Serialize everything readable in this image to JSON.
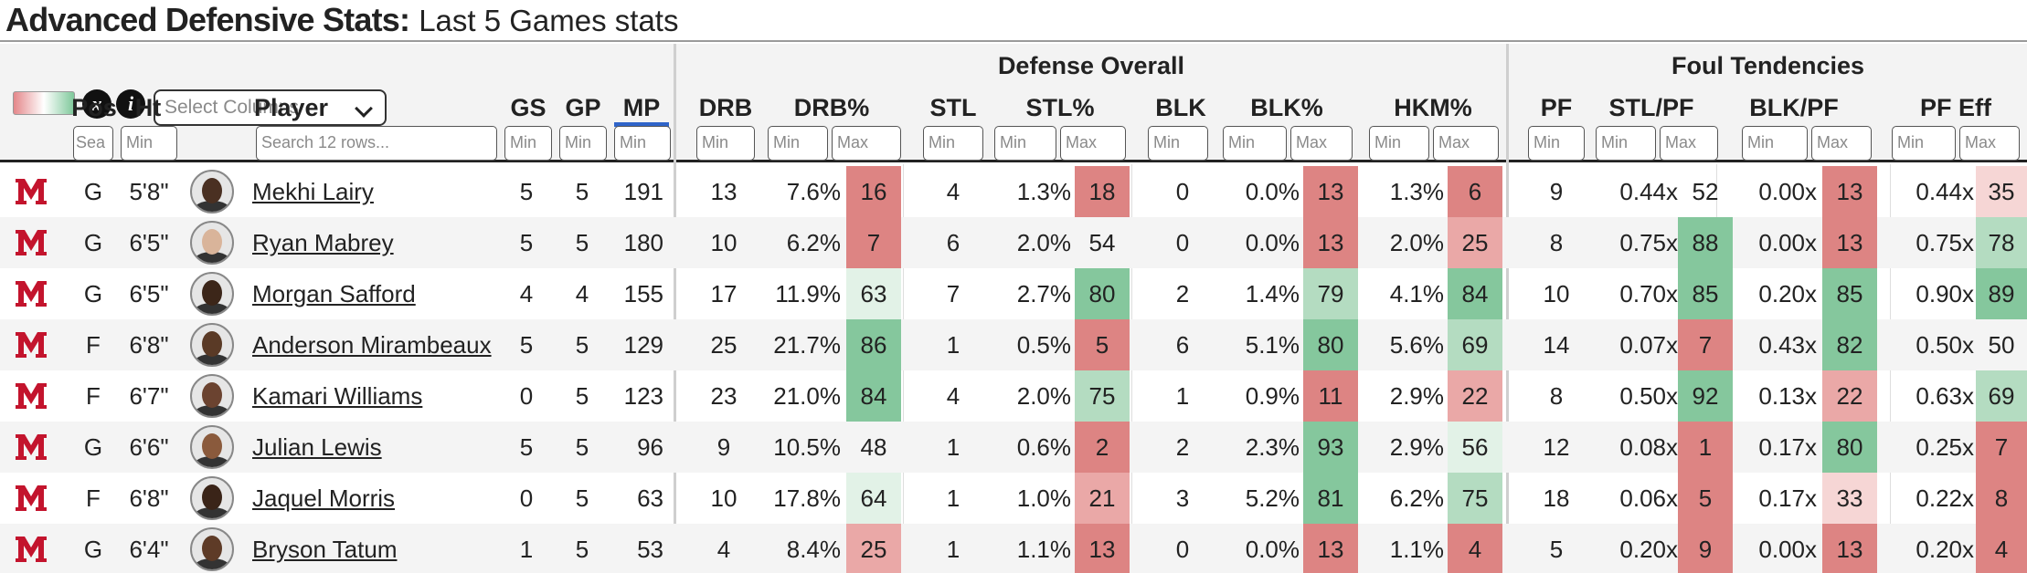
{
  "header": {
    "title_main": "Advanced Defensive Stats:",
    "title_sub": "Last 5 Games stats"
  },
  "controls": {
    "legend_icon": "color-gradient-legend-icon",
    "x_icon": "x",
    "info_icon": "i",
    "select_columns_placeholder": "Select Columns"
  },
  "groups": {
    "defense": "Defense Overall",
    "foul": "Foul Tendencies"
  },
  "columns": {
    "pos": "Pos",
    "ht": "Ht",
    "player": "Player",
    "gs": "GS",
    "gp": "GP",
    "mp": "MP",
    "drb": "DRB",
    "drb_pct": "DRB%",
    "stl": "STL",
    "stl_pct": "STL%",
    "blk": "BLK",
    "blk_pct": "BLK%",
    "hkm_pct": "HKM%",
    "pf": "PF",
    "stl_pf": "STL/PF",
    "blk_pf": "BLK/PF",
    "pf_eff": "PF Eff"
  },
  "filters": {
    "search_short": "Sea",
    "min": "Min",
    "max": "Max",
    "player_search": "Search 12 rows..."
  },
  "colors": {
    "red_strong": "#dd8483",
    "red_mid": "#eaa8a7",
    "red_light": "#f6d6d5",
    "green_strong": "#85c79d",
    "green_mid": "#b4dcc1",
    "green_light": "#e2f2e7",
    "mp_sort_accent": "#2f64c9",
    "logo_red": "#c3142d"
  },
  "rows": [
    {
      "pos": "G",
      "ht": "5'8\"",
      "player": "Mekhi Lairy",
      "gs": "5",
      "gp": "5",
      "mp": "191",
      "drb": "13",
      "drb_pct": "7.6%",
      "drb_r": "16",
      "stl": "4",
      "stl_pct": "1.3%",
      "stl_r": "18",
      "blk": "0",
      "blk_pct": "0.0%",
      "blk_r": "13",
      "hkm_pct": "1.3%",
      "hkm_r": "6",
      "pf": "9",
      "stl_pf": "0.44x",
      "stl_pf_r": "52",
      "blk_pf": "0.00x",
      "blk_pf_r": "13",
      "pf_eff": "0.44x",
      "pf_eff_r": "35",
      "skin": "#4a3022"
    },
    {
      "pos": "G",
      "ht": "6'5\"",
      "player": "Ryan Mabrey",
      "gs": "5",
      "gp": "5",
      "mp": "180",
      "drb": "10",
      "drb_pct": "6.2%",
      "drb_r": "7",
      "stl": "6",
      "stl_pct": "2.0%",
      "stl_r": "54",
      "blk": "0",
      "blk_pct": "0.0%",
      "blk_r": "13",
      "hkm_pct": "2.0%",
      "hkm_r": "25",
      "pf": "8",
      "stl_pf": "0.75x",
      "stl_pf_r": "88",
      "blk_pf": "0.00x",
      "blk_pf_r": "13",
      "pf_eff": "0.75x",
      "pf_eff_r": "78",
      "skin": "#d9b49a"
    },
    {
      "pos": "G",
      "ht": "6'5\"",
      "player": "Morgan Safford",
      "gs": "4",
      "gp": "4",
      "mp": "155",
      "drb": "17",
      "drb_pct": "11.9%",
      "drb_r": "63",
      "stl": "7",
      "stl_pct": "2.7%",
      "stl_r": "80",
      "blk": "2",
      "blk_pct": "1.4%",
      "blk_r": "79",
      "hkm_pct": "4.1%",
      "hkm_r": "84",
      "pf": "10",
      "stl_pf": "0.70x",
      "stl_pf_r": "85",
      "blk_pf": "0.20x",
      "blk_pf_r": "85",
      "pf_eff": "0.90x",
      "pf_eff_r": "89",
      "skin": "#3c2619"
    },
    {
      "pos": "F",
      "ht": "6'8\"",
      "player": "Anderson Mirambeaux",
      "gs": "5",
      "gp": "5",
      "mp": "129",
      "drb": "25",
      "drb_pct": "21.7%",
      "drb_r": "86",
      "stl": "1",
      "stl_pct": "0.5%",
      "stl_r": "5",
      "blk": "6",
      "blk_pct": "5.1%",
      "blk_r": "80",
      "hkm_pct": "5.6%",
      "hkm_r": "69",
      "pf": "14",
      "stl_pf": "0.07x",
      "stl_pf_r": "7",
      "blk_pf": "0.43x",
      "blk_pf_r": "82",
      "pf_eff": "0.50x",
      "pf_eff_r": "50",
      "skin": "#5a3a26"
    },
    {
      "pos": "F",
      "ht": "6'7\"",
      "player": "Kamari Williams",
      "gs": "0",
      "gp": "5",
      "mp": "123",
      "drb": "23",
      "drb_pct": "21.0%",
      "drb_r": "84",
      "stl": "4",
      "stl_pct": "2.0%",
      "stl_r": "75",
      "blk": "1",
      "blk_pct": "0.9%",
      "blk_r": "11",
      "hkm_pct": "2.9%",
      "hkm_r": "22",
      "pf": "8",
      "stl_pf": "0.50x",
      "stl_pf_r": "92",
      "blk_pf": "0.13x",
      "blk_pf_r": "22",
      "pf_eff": "0.63x",
      "pf_eff_r": "69",
      "skin": "#6b4330"
    },
    {
      "pos": "G",
      "ht": "6'6\"",
      "player": "Julian Lewis",
      "gs": "5",
      "gp": "5",
      "mp": "96",
      "drb": "9",
      "drb_pct": "10.5%",
      "drb_r": "48",
      "stl": "1",
      "stl_pct": "0.6%",
      "stl_r": "2",
      "blk": "2",
      "blk_pct": "2.3%",
      "blk_r": "93",
      "hkm_pct": "2.9%",
      "hkm_r": "56",
      "pf": "12",
      "stl_pf": "0.08x",
      "stl_pf_r": "1",
      "blk_pf": "0.17x",
      "blk_pf_r": "80",
      "pf_eff": "0.25x",
      "pf_eff_r": "7",
      "skin": "#8a5a3c"
    },
    {
      "pos": "F",
      "ht": "6'8\"",
      "player": "Jaquel Morris",
      "gs": "0",
      "gp": "5",
      "mp": "63",
      "drb": "10",
      "drb_pct": "17.8%",
      "drb_r": "64",
      "stl": "1",
      "stl_pct": "1.0%",
      "stl_r": "21",
      "blk": "3",
      "blk_pct": "5.2%",
      "blk_r": "81",
      "hkm_pct": "6.2%",
      "hkm_r": "75",
      "pf": "18",
      "stl_pf": "0.06x",
      "stl_pf_r": "5",
      "blk_pf": "0.17x",
      "blk_pf_r": "33",
      "pf_eff": "0.22x",
      "pf_eff_r": "8",
      "skin": "#3a2418"
    },
    {
      "pos": "G",
      "ht": "6'4\"",
      "player": "Bryson Tatum",
      "gs": "1",
      "gp": "5",
      "mp": "53",
      "drb": "4",
      "drb_pct": "8.4%",
      "drb_r": "25",
      "stl": "1",
      "stl_pct": "1.1%",
      "stl_r": "13",
      "blk": "0",
      "blk_pct": "0.0%",
      "blk_r": "13",
      "hkm_pct": "1.1%",
      "hkm_r": "4",
      "pf": "5",
      "stl_pf": "0.20x",
      "stl_pf_r": "9",
      "blk_pf": "0.00x",
      "blk_pf_r": "13",
      "pf_eff": "0.20x",
      "pf_eff_r": "4",
      "skin": "#5e3b27"
    }
  ]
}
